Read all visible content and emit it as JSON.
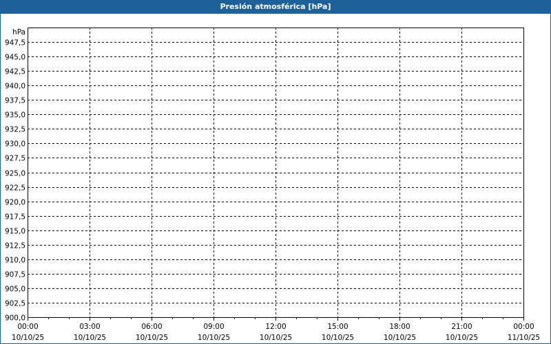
{
  "window": {
    "title": "Presión atmosférica [hPa]",
    "title_bar_color": "#1e6198"
  },
  "chart_data": {
    "type": "line",
    "title": "Presión atmosférica [hPa]",
    "ylabel": "hPa",
    "xlabel": "",
    "ylim": [
      900,
      950
    ],
    "y_ticks": [
      "900,0",
      "902,5",
      "905,0",
      "907,5",
      "910,0",
      "912,5",
      "915,0",
      "917,5",
      "920,0",
      "922,5",
      "925,0",
      "927,5",
      "930,0",
      "932,5",
      "935,0",
      "937,5",
      "940,0",
      "942,5",
      "945,0",
      "947,5"
    ],
    "x_ticks": [
      {
        "time": "00:00",
        "date": "10/10/25"
      },
      {
        "time": "03:00",
        "date": "10/10/25"
      },
      {
        "time": "06:00",
        "date": "10/10/25"
      },
      {
        "time": "09:00",
        "date": "10/10/25"
      },
      {
        "time": "12:00",
        "date": "10/10/25"
      },
      {
        "time": "15:00",
        "date": "10/10/25"
      },
      {
        "time": "18:00",
        "date": "10/10/25"
      },
      {
        "time": "21:00",
        "date": "10/10/25"
      },
      {
        "time": "00:00",
        "date": "11/10/25"
      }
    ],
    "xlim": [
      "10/10/25 00:00",
      "11/10/25 00:00"
    ],
    "grid": true,
    "series": []
  }
}
